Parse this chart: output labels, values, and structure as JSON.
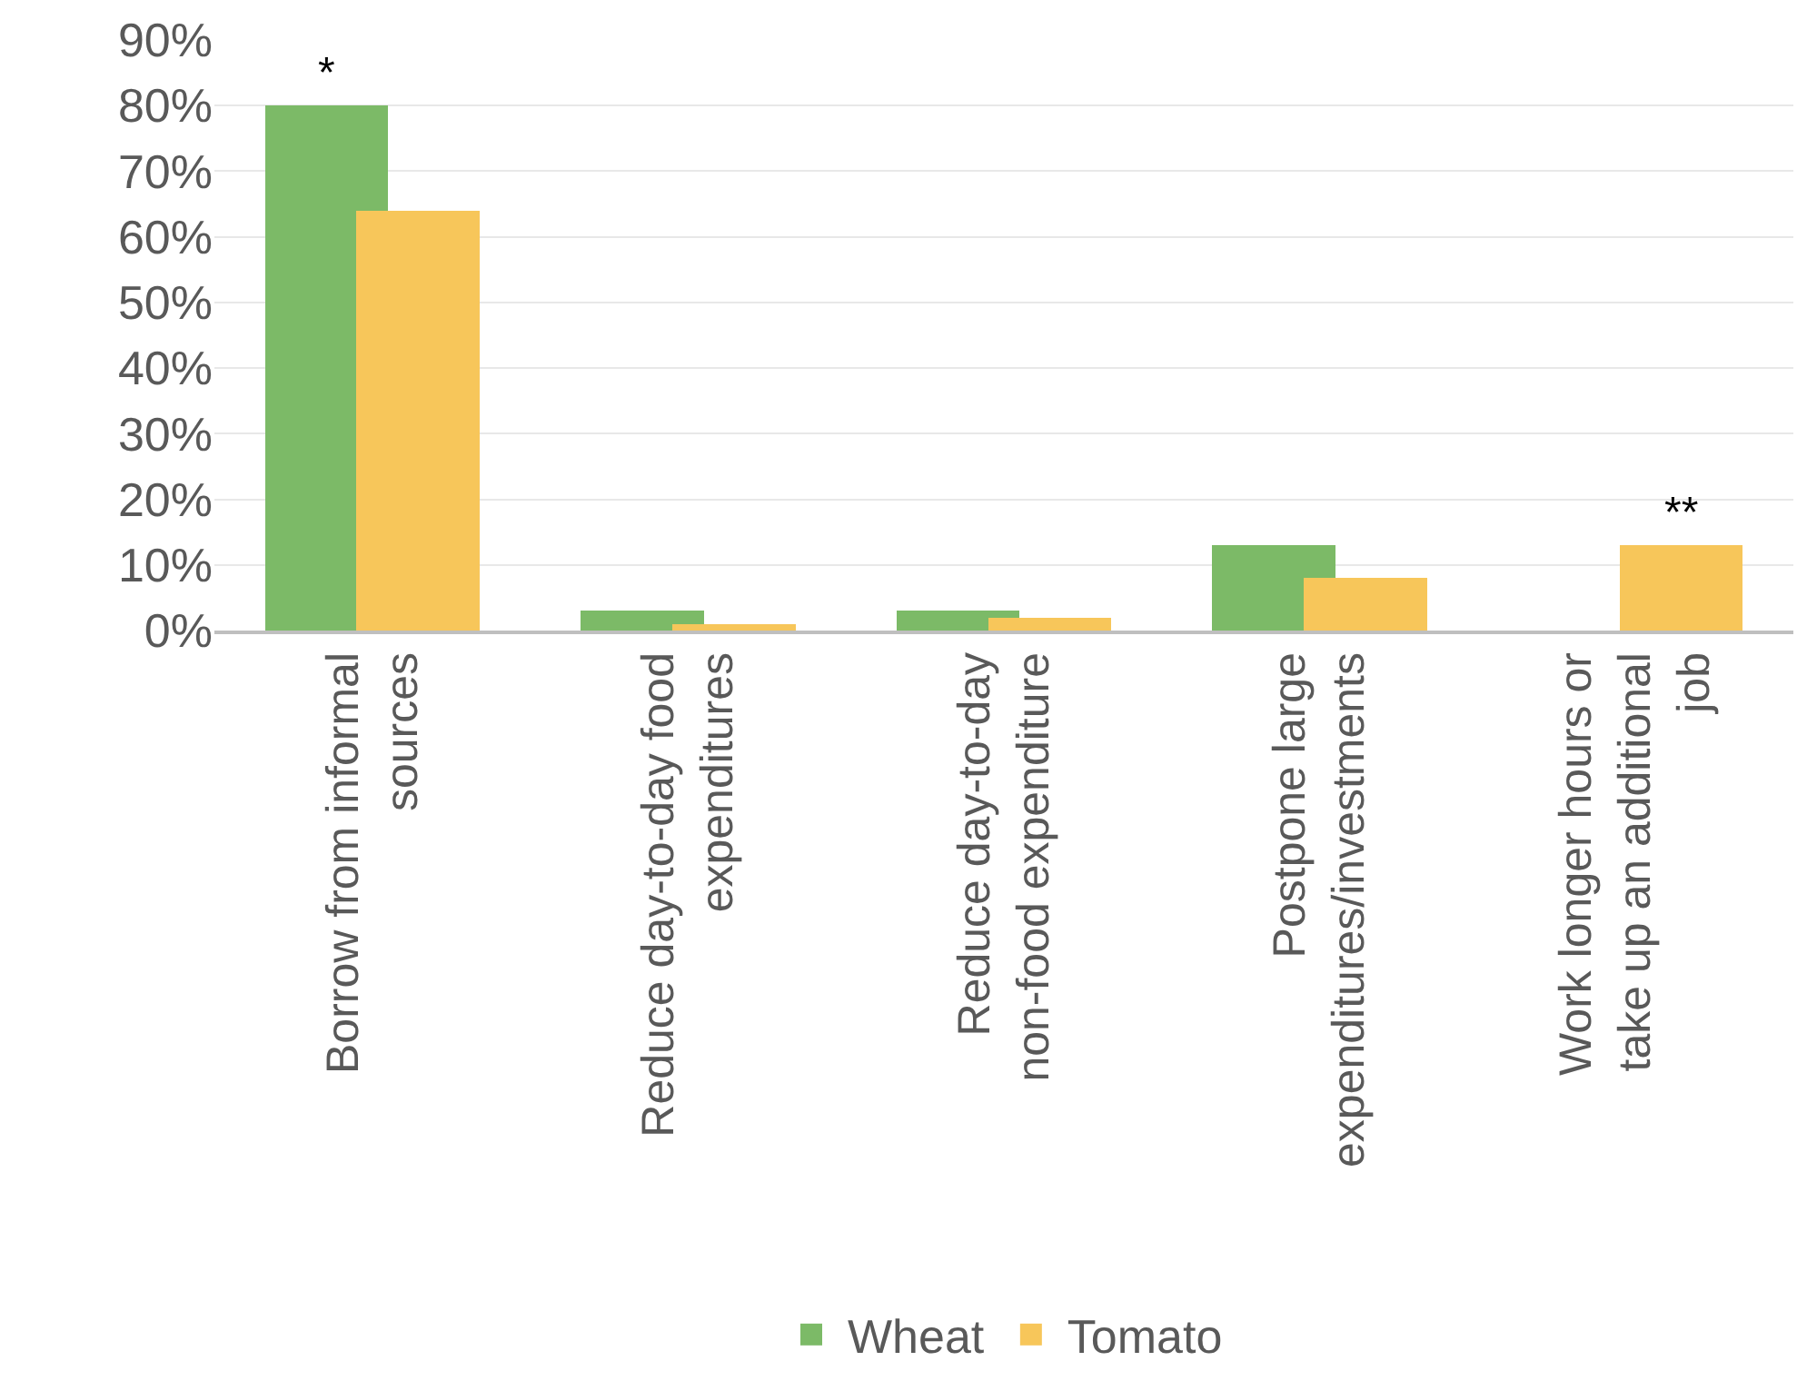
{
  "chart_data": {
    "type": "bar",
    "categories": [
      "Borrow from informal sources",
      "Reduce day-to-day food expenditures",
      "Reduce day-to-day non-food expenditure",
      "Postpone large expenditures/investments",
      "Work longer hours or take up an additional job"
    ],
    "series": [
      {
        "name": "Wheat",
        "color": "#7cba67",
        "values": [
          80,
          3,
          3,
          13,
          0
        ]
      },
      {
        "name": "Tomato",
        "color": "#f7c65a",
        "values": [
          64,
          1,
          2,
          8,
          13
        ]
      }
    ],
    "ylim": [
      0,
      90
    ],
    "yticks": [
      {
        "value": 0,
        "label": "0%"
      },
      {
        "value": 10,
        "label": "10%"
      },
      {
        "value": 20,
        "label": "20%"
      },
      {
        "value": 30,
        "label": "30%"
      },
      {
        "value": 40,
        "label": "40%"
      },
      {
        "value": 50,
        "label": "50%"
      },
      {
        "value": 60,
        "label": "60%"
      },
      {
        "value": 70,
        "label": "70%"
      },
      {
        "value": 80,
        "label": "80%"
      },
      {
        "value": 90,
        "label": "90%"
      }
    ],
    "annotations": [
      {
        "text": "*",
        "x": "Borrow from informal sources",
        "y": 80
      },
      {
        "text": "**",
        "x": "Work longer hours or take up an additional job",
        "y": 13
      }
    ],
    "grid": "y",
    "legend": "bottom"
  }
}
